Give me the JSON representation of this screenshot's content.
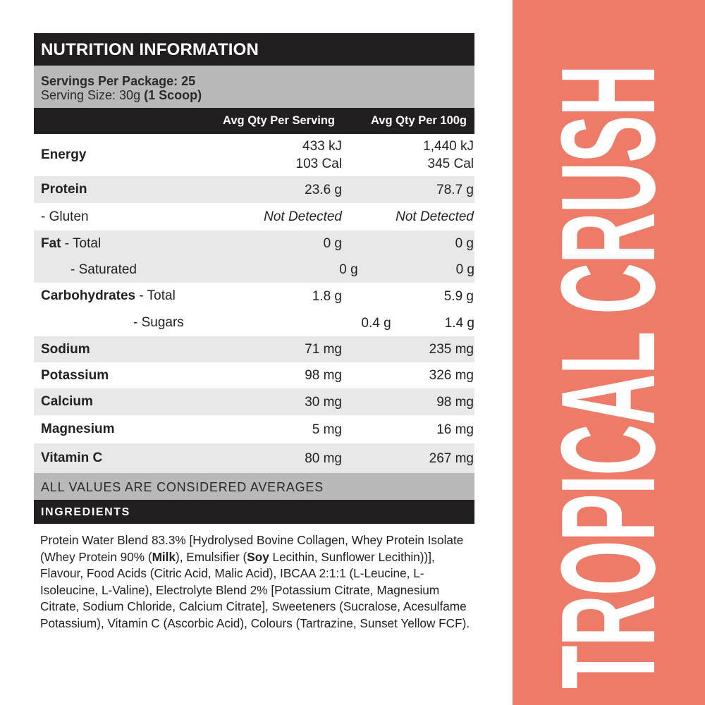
{
  "nutrition": {
    "title": "NUTRITION INFORMATION",
    "servings": "Servings Per Package: 25",
    "serving_size": "Serving Size: 30g",
    "serving_size_note": "(1 Scoop)",
    "col_serving": "Avg Qty Per Serving",
    "col_100g": "Avg Qty Per 100g",
    "rows": [
      {
        "bold": "Energy",
        "rest": "",
        "v1a": "433 kJ",
        "v1b": "103 Cal",
        "v2a": "1,440 kJ",
        "v2b": "345 Cal"
      },
      {
        "bold": "Protein",
        "rest": "",
        "v1": "23.6 g",
        "v2": "78.7 g"
      },
      {
        "bold": "",
        "rest": "- Gluten",
        "v1": "Not Detected",
        "v2": "Not Detected"
      },
      {
        "bold": "Fat",
        "rest": " - Total",
        "v1": "0 g",
        "v2": "0 g"
      },
      {
        "bold": "",
        "rest": "- Saturated",
        "v1": "0 g",
        "v2": "0 g"
      },
      {
        "bold": "Carbohydrates",
        "rest": " - Total",
        "v1": "1.8 g",
        "v2": "5.9 g"
      },
      {
        "bold": "",
        "rest": "- Sugars",
        "v1": "0.4 g",
        "v2": "1.4 g"
      },
      {
        "bold": "Sodium",
        "rest": "",
        "v1": "71 mg",
        "v2": "235 mg"
      },
      {
        "bold": "Potassium",
        "rest": "",
        "v1": "98 mg",
        "v2": "326 mg"
      },
      {
        "bold": "Calcium",
        "rest": "",
        "v1": "30 mg",
        "v2": "98 mg"
      },
      {
        "bold": "Magnesium",
        "rest": "",
        "v1": "5 mg",
        "v2": "16 mg"
      },
      {
        "bold": "Vitamin C",
        "rest": "",
        "v1": "80 mg",
        "v2": "267 mg"
      }
    ],
    "averages_note": "ALL VALUES ARE CONSIDERED AVERAGES"
  },
  "ingredients": {
    "heading": "INGREDIENTS",
    "parts": [
      "Protein Water Blend 83.3% [Hydrolysed Bovine Collagen, Whey Protein Isolate (Whey Protein 90% (",
      "Milk",
      "), Emulsifier (",
      "Soy",
      " Lecithin, Sunflower Lecithin))], Flavour, Food Acids (Citric Acid, Malic Acid), IBCAA 2:1:1 (L-Leucine, L-Isoleucine, L-Valine), Electrolyte Blend 2% [Potassium Citrate, Magnesium Citrate, Sodium Chloride, Calcium Citrate], Sweeteners (Sucralose, Acesulfame Potassium), Vitamin C (Ascorbic Acid), Colours (Tartrazine, Sunset Yellow FCF)."
    ]
  },
  "flavour": "TROPICAL CRUSH",
  "colors": {
    "dark": "#231f20",
    "band": "#b9b9b9",
    "row_alt": "#e8e8e8",
    "accent": "#ee7b68"
  }
}
